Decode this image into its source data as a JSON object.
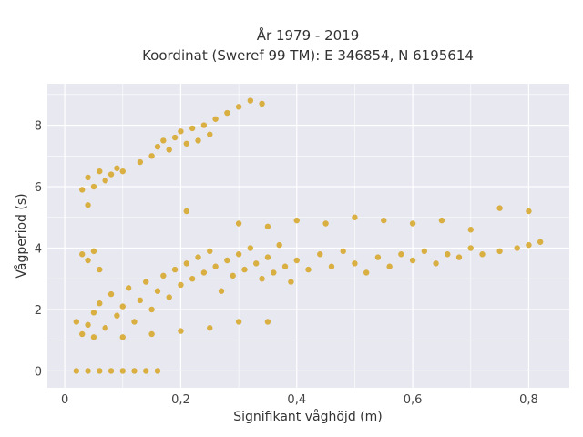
{
  "chart_data": {
    "type": "scatter",
    "title": "År 1979 - 2019",
    "subtitle": "Koordinat (Sweref 99 TM): E 346854, N 6195614",
    "xlabel": "Signifikant våghöjd (m)",
    "ylabel": "Vågperiod (s)",
    "xlim": [
      -0.03,
      0.87
    ],
    "ylim": [
      -0.55,
      9.35
    ],
    "x_ticks": [
      0,
      0.2,
      0.4,
      0.6,
      0.8
    ],
    "x_tick_labels": [
      "0",
      "0,2",
      "0,4",
      "0,6",
      "0,8"
    ],
    "y_ticks": [
      0,
      2,
      4,
      6,
      8
    ],
    "y_tick_labels": [
      "0",
      "2",
      "4",
      "6",
      "8"
    ],
    "grid": true,
    "legend": "none",
    "colors": {
      "marker": "#d4a017",
      "plot_background": "#e8e8f1",
      "grid": "#ffffff"
    },
    "series": [
      {
        "values_note_omitted": "",
        "points": [
          [
            0.02,
            0.0
          ],
          [
            0.04,
            0.0
          ],
          [
            0.06,
            0.0
          ],
          [
            0.08,
            0.0
          ],
          [
            0.1,
            0.0
          ],
          [
            0.12,
            0.0
          ],
          [
            0.14,
            0.0
          ],
          [
            0.16,
            0.0
          ],
          [
            0.02,
            1.6
          ],
          [
            0.03,
            1.2
          ],
          [
            0.04,
            1.5
          ],
          [
            0.05,
            1.9
          ],
          [
            0.06,
            2.2
          ],
          [
            0.07,
            1.4
          ],
          [
            0.08,
            2.5
          ],
          [
            0.09,
            1.8
          ],
          [
            0.1,
            2.1
          ],
          [
            0.11,
            2.7
          ],
          [
            0.12,
            1.6
          ],
          [
            0.13,
            2.3
          ],
          [
            0.14,
            2.9
          ],
          [
            0.15,
            2.0
          ],
          [
            0.16,
            2.6
          ],
          [
            0.17,
            3.1
          ],
          [
            0.18,
            2.4
          ],
          [
            0.19,
            3.3
          ],
          [
            0.2,
            2.8
          ],
          [
            0.21,
            3.5
          ],
          [
            0.22,
            3.0
          ],
          [
            0.23,
            3.7
          ],
          [
            0.24,
            3.2
          ],
          [
            0.25,
            3.9
          ],
          [
            0.26,
            3.4
          ],
          [
            0.27,
            2.6
          ],
          [
            0.28,
            3.6
          ],
          [
            0.29,
            3.1
          ],
          [
            0.3,
            3.8
          ],
          [
            0.31,
            3.3
          ],
          [
            0.32,
            4.0
          ],
          [
            0.33,
            3.5
          ],
          [
            0.34,
            3.0
          ],
          [
            0.35,
            3.7
          ],
          [
            0.36,
            3.2
          ],
          [
            0.37,
            4.1
          ],
          [
            0.38,
            3.4
          ],
          [
            0.39,
            2.9
          ],
          [
            0.4,
            3.6
          ],
          [
            0.42,
            3.3
          ],
          [
            0.44,
            3.8
          ],
          [
            0.46,
            3.4
          ],
          [
            0.48,
            3.9
          ],
          [
            0.5,
            3.5
          ],
          [
            0.52,
            3.2
          ],
          [
            0.54,
            3.7
          ],
          [
            0.56,
            3.4
          ],
          [
            0.58,
            3.8
          ],
          [
            0.6,
            3.6
          ],
          [
            0.62,
            3.9
          ],
          [
            0.64,
            3.5
          ],
          [
            0.66,
            3.8
          ],
          [
            0.68,
            3.7
          ],
          [
            0.7,
            4.0
          ],
          [
            0.72,
            3.8
          ],
          [
            0.75,
            3.9
          ],
          [
            0.78,
            4.0
          ],
          [
            0.8,
            4.1
          ],
          [
            0.82,
            4.2
          ],
          [
            0.03,
            3.8
          ],
          [
            0.04,
            3.6
          ],
          [
            0.05,
            3.9
          ],
          [
            0.06,
            3.3
          ],
          [
            0.03,
            5.9
          ],
          [
            0.04,
            6.3
          ],
          [
            0.05,
            6.0
          ],
          [
            0.06,
            6.5
          ],
          [
            0.07,
            6.2
          ],
          [
            0.08,
            6.4
          ],
          [
            0.09,
            6.6
          ],
          [
            0.1,
            6.5
          ],
          [
            0.04,
            5.4
          ],
          [
            0.13,
            6.8
          ],
          [
            0.15,
            7.0
          ],
          [
            0.16,
            7.3
          ],
          [
            0.17,
            7.5
          ],
          [
            0.18,
            7.2
          ],
          [
            0.19,
            7.6
          ],
          [
            0.2,
            7.8
          ],
          [
            0.21,
            7.4
          ],
          [
            0.22,
            7.9
          ],
          [
            0.23,
            7.5
          ],
          [
            0.24,
            8.0
          ],
          [
            0.25,
            7.7
          ],
          [
            0.26,
            8.2
          ],
          [
            0.28,
            8.4
          ],
          [
            0.3,
            8.6
          ],
          [
            0.32,
            8.8
          ],
          [
            0.34,
            8.7
          ],
          [
            0.21,
            5.2
          ],
          [
            0.3,
            4.8
          ],
          [
            0.35,
            4.7
          ],
          [
            0.4,
            4.9
          ],
          [
            0.45,
            4.8
          ],
          [
            0.5,
            5.0
          ],
          [
            0.55,
            4.9
          ],
          [
            0.6,
            4.8
          ],
          [
            0.65,
            4.9
          ],
          [
            0.7,
            4.6
          ],
          [
            0.75,
            5.3
          ],
          [
            0.8,
            5.2
          ],
          [
            0.05,
            1.1
          ],
          [
            0.1,
            1.1
          ],
          [
            0.15,
            1.2
          ],
          [
            0.2,
            1.3
          ],
          [
            0.25,
            1.4
          ],
          [
            0.3,
            1.6
          ],
          [
            0.35,
            1.6
          ]
        ]
      }
    ]
  }
}
